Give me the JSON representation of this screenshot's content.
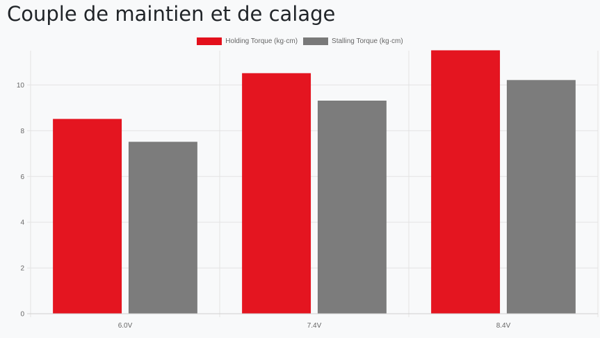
{
  "page": {
    "title": "Couple de maintien et de calage"
  },
  "colors": {
    "holding": "#e3101c",
    "stalling": "#797979",
    "grid": "#e3e3e3",
    "axis_text": "#666666"
  },
  "chart_data": {
    "type": "bar",
    "categories": [
      "6.0V",
      "7.4V",
      "8.4V"
    ],
    "series": [
      {
        "name": "Holding Torque (kg·cm)",
        "values": [
          8.5,
          10.5,
          11.5
        ],
        "color": "#e3101c"
      },
      {
        "name": "Stalling Torque (kg·cm)",
        "values": [
          7.5,
          9.3,
          10.2
        ],
        "color": "#797979"
      }
    ],
    "y_ticks": [
      0,
      2,
      4,
      6,
      8,
      10
    ],
    "ylim": [
      0,
      11.5
    ],
    "grid": true,
    "legend_position": "top"
  }
}
